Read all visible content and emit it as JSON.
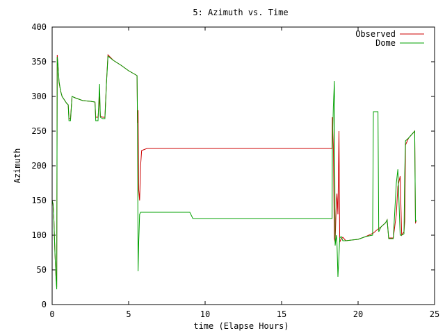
{
  "chart_data": {
    "type": "line",
    "title": "5: Azimuth vs. Time",
    "xlabel": "time (Elapse Hours)",
    "ylabel": "Azimuth",
    "xlim": [
      0,
      25
    ],
    "ylim": [
      0,
      400
    ],
    "xticks": [
      0,
      5,
      10,
      15,
      20,
      25
    ],
    "yticks": [
      0,
      50,
      100,
      150,
      200,
      250,
      300,
      350,
      400
    ],
    "legend_position": "top-right",
    "grid": false,
    "series": [
      {
        "name": "Observed",
        "color": "#cc0000",
        "points": [
          [
            0.0,
            150
          ],
          [
            0.06,
            145
          ],
          [
            0.12,
            120
          ],
          [
            0.18,
            75
          ],
          [
            0.25,
            40
          ],
          [
            0.3,
            25
          ],
          [
            0.33,
            360
          ],
          [
            0.38,
            345
          ],
          [
            0.45,
            320
          ],
          [
            0.55,
            308
          ],
          [
            0.65,
            300
          ],
          [
            0.8,
            295
          ],
          [
            0.95,
            290
          ],
          [
            1.05,
            288
          ],
          [
            1.1,
            268
          ],
          [
            1.2,
            268
          ],
          [
            1.3,
            300
          ],
          [
            1.5,
            298
          ],
          [
            2.0,
            294
          ],
          [
            2.5,
            293
          ],
          [
            2.8,
            292
          ],
          [
            2.85,
            270
          ],
          [
            3.0,
            270
          ],
          [
            3.1,
            300
          ],
          [
            3.15,
            272
          ],
          [
            3.3,
            270
          ],
          [
            3.45,
            270
          ],
          [
            3.55,
            320
          ],
          [
            3.65,
            360
          ],
          [
            4.0,
            352
          ],
          [
            4.5,
            345
          ],
          [
            5.0,
            337
          ],
          [
            5.4,
            332
          ],
          [
            5.55,
            330
          ],
          [
            5.58,
            262
          ],
          [
            5.62,
            280
          ],
          [
            5.66,
            165
          ],
          [
            5.72,
            150
          ],
          [
            5.78,
            200
          ],
          [
            5.85,
            222
          ],
          [
            6.2,
            225
          ],
          [
            10.0,
            225
          ],
          [
            15.0,
            225
          ],
          [
            18.3,
            225
          ],
          [
            18.32,
            270
          ],
          [
            18.38,
            230
          ],
          [
            18.45,
            95
          ],
          [
            18.5,
            90
          ],
          [
            18.58,
            150
          ],
          [
            18.62,
            160
          ],
          [
            18.68,
            130
          ],
          [
            18.75,
            250
          ],
          [
            18.8,
            90
          ],
          [
            18.9,
            95
          ],
          [
            19.0,
            97
          ],
          [
            19.2,
            92
          ],
          [
            20.0,
            94
          ],
          [
            20.5,
            98
          ],
          [
            21.0,
            103
          ],
          [
            21.2,
            107
          ],
          [
            21.5,
            112
          ],
          [
            21.8,
            118
          ],
          [
            21.9,
            122
          ],
          [
            22.0,
            96
          ],
          [
            22.3,
            96
          ],
          [
            22.5,
            130
          ],
          [
            22.6,
            170
          ],
          [
            22.75,
            185
          ],
          [
            22.85,
            100
          ],
          [
            23.0,
            105
          ],
          [
            23.05,
            120
          ],
          [
            23.1,
            230
          ],
          [
            23.3,
            240
          ],
          [
            23.5,
            245
          ],
          [
            23.7,
            250
          ],
          [
            23.75,
            118
          ],
          [
            23.8,
            120
          ]
        ]
      },
      {
        "name": "Dome",
        "color": "#00a000",
        "points": [
          [
            0.0,
            150
          ],
          [
            0.06,
            145
          ],
          [
            0.12,
            120
          ],
          [
            0.18,
            75
          ],
          [
            0.25,
            40
          ],
          [
            0.3,
            22
          ],
          [
            0.33,
            357
          ],
          [
            0.38,
            345
          ],
          [
            0.45,
            322
          ],
          [
            0.55,
            308
          ],
          [
            0.65,
            300
          ],
          [
            0.8,
            295
          ],
          [
            0.95,
            290
          ],
          [
            1.05,
            288
          ],
          [
            1.1,
            265
          ],
          [
            1.2,
            265
          ],
          [
            1.3,
            300
          ],
          [
            1.5,
            298
          ],
          [
            2.0,
            294
          ],
          [
            2.5,
            293
          ],
          [
            2.8,
            292
          ],
          [
            2.85,
            265
          ],
          [
            3.0,
            265
          ],
          [
            3.1,
            318
          ],
          [
            3.15,
            270
          ],
          [
            3.3,
            268
          ],
          [
            3.45,
            268
          ],
          [
            3.55,
            318
          ],
          [
            3.65,
            358
          ],
          [
            4.0,
            352
          ],
          [
            4.5,
            345
          ],
          [
            5.0,
            337
          ],
          [
            5.4,
            332
          ],
          [
            5.55,
            330
          ],
          [
            5.58,
            255
          ],
          [
            5.62,
            48
          ],
          [
            5.66,
            90
          ],
          [
            5.72,
            130
          ],
          [
            5.78,
            133
          ],
          [
            6.2,
            133
          ],
          [
            9.0,
            133
          ],
          [
            9.2,
            124
          ],
          [
            10.0,
            124
          ],
          [
            15.0,
            124
          ],
          [
            18.3,
            124
          ],
          [
            18.32,
            225
          ],
          [
            18.38,
            285
          ],
          [
            18.45,
            322
          ],
          [
            18.5,
            85
          ],
          [
            18.58,
            100
          ],
          [
            18.62,
            90
          ],
          [
            18.68,
            40
          ],
          [
            18.75,
            70
          ],
          [
            18.8,
            96
          ],
          [
            18.9,
            98
          ],
          [
            19.0,
            92
          ],
          [
            19.2,
            92
          ],
          [
            20.0,
            94
          ],
          [
            20.5,
            98
          ],
          [
            20.95,
            100
          ],
          [
            21.0,
            278
          ],
          [
            21.3,
            278
          ],
          [
            21.35,
            105
          ],
          [
            21.5,
            112
          ],
          [
            21.8,
            118
          ],
          [
            21.9,
            122
          ],
          [
            22.0,
            95
          ],
          [
            22.3,
            95
          ],
          [
            22.5,
            175
          ],
          [
            22.6,
            195
          ],
          [
            22.75,
            100
          ],
          [
            22.85,
            100
          ],
          [
            23.0,
            102
          ],
          [
            23.05,
            190
          ],
          [
            23.1,
            236
          ],
          [
            23.3,
            240
          ],
          [
            23.5,
            245
          ],
          [
            23.7,
            250
          ],
          [
            23.75,
            120
          ],
          [
            23.8,
            122
          ]
        ]
      }
    ]
  }
}
